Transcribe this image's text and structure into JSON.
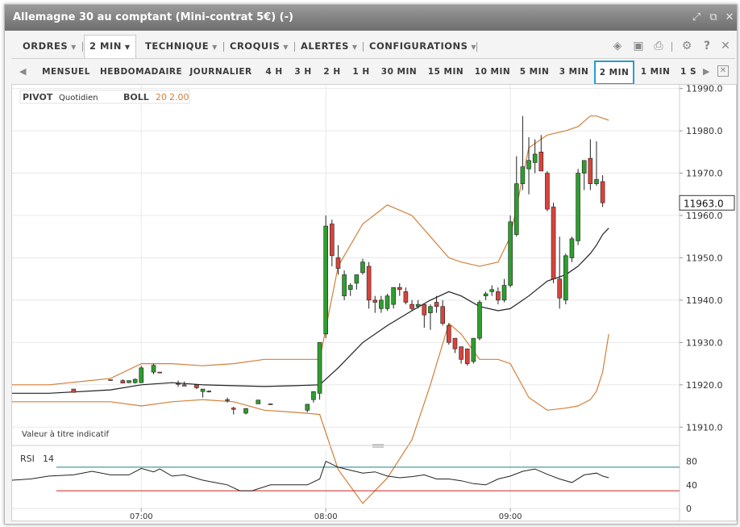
{
  "window": {
    "title": "Allemagne 30 au comptant (Mini-contrat 5€) (-)"
  },
  "menu": {
    "items": [
      "ORDRES",
      "2 MIN",
      "TECHNIQUE",
      "CROQUIS",
      "ALERTES",
      "CONFIGURATIONS"
    ],
    "selected": "2 MIN"
  },
  "toolbar_icons": [
    "layers-icon",
    "image-icon",
    "print-icon",
    "gear-icon",
    "help-icon",
    "close-icon"
  ],
  "timeframes": {
    "items": [
      "MENSUEL",
      "HEBDOMADAIRE",
      "JOURNALIER",
      "4 H",
      "3 H",
      "2 H",
      "1 H",
      "30 MIN",
      "15 MIN",
      "10 MIN",
      "5 MIN",
      "3 MIN",
      "2 MIN",
      "1 MIN",
      "1 S"
    ],
    "selected": "2 MIN"
  },
  "indicators": {
    "pivot_label": "PIVOT",
    "pivot_value": "Quotidien",
    "boll_label": "BOLL",
    "boll_period": "20",
    "boll_dev": "2.00",
    "disclaimer": "Valeur à titre indicatif",
    "rsi_label": "RSI",
    "rsi_period": "14"
  },
  "colors": {
    "up": "#2e9e2e",
    "down": "#d9433b",
    "band": "#d2803a",
    "sma": "#222222",
    "rsi_line": "#222222",
    "rsi_upper": "#1f7f8f",
    "rsi_lower": "#cc2222",
    "selection": "#2a9bd0"
  },
  "chart_data": [
    {
      "type": "candlestick",
      "price_axis": {
        "ticks": [
          11910,
          11920,
          11930,
          11940,
          11950,
          11960,
          11970,
          11980,
          11990
        ],
        "range": [
          11907,
          11990.5
        ]
      },
      "time_axis": {
        "ticks": [
          "07:00",
          "08:00",
          "09:00"
        ],
        "range": [
          "06:18",
          "09:55"
        ]
      },
      "last_price": "11963.0",
      "candles": [
        {
          "t": "06:38",
          "o": 11919,
          "h": 11919,
          "l": 11918.2,
          "c": 11918.2
        },
        {
          "t": "06:50",
          "o": 11921.2,
          "h": 11921.2,
          "l": 11921.1,
          "c": 11921.1
        },
        {
          "t": "06:54",
          "o": 11921,
          "h": 11921.3,
          "l": 11920.4,
          "c": 11920.4
        },
        {
          "t": "06:56",
          "o": 11920.5,
          "h": 11921,
          "l": 11920.4,
          "c": 11921
        },
        {
          "t": "06:58",
          "o": 11920.5,
          "h": 11921.5,
          "l": 11920.3,
          "c": 11921.3
        },
        {
          "t": "07:00",
          "o": 11920.5,
          "h": 11924.5,
          "l": 11920.5,
          "c": 11924
        },
        {
          "t": "07:04",
          "o": 11923,
          "h": 11925,
          "l": 11922.5,
          "c": 11924.6
        },
        {
          "t": "07:06",
          "o": 11923,
          "h": 11923,
          "l": 11922.8,
          "c": 11922.8
        },
        {
          "t": "07:12",
          "o": 11920.3,
          "h": 11921,
          "l": 11919.5,
          "c": 11920.2
        },
        {
          "t": "07:14",
          "o": 11920,
          "h": 11920.8,
          "l": 11919.7,
          "c": 11919.7
        },
        {
          "t": "07:18",
          "o": 11920,
          "h": 11920.2,
          "l": 11919,
          "c": 11919.3
        },
        {
          "t": "07:20",
          "o": 11918.4,
          "h": 11919,
          "l": 11917,
          "c": 11919
        },
        {
          "t": "07:22",
          "o": 11918.5,
          "h": 11918.7,
          "l": 11918.2,
          "c": 11918.4
        },
        {
          "t": "07:28",
          "o": 11916.5,
          "h": 11917,
          "l": 11915.8,
          "c": 11916.4
        },
        {
          "t": "07:30",
          "o": 11914.5,
          "h": 11914.8,
          "l": 11913,
          "c": 11914.2
        },
        {
          "t": "07:34",
          "o": 11913.3,
          "h": 11914.5,
          "l": 11913,
          "c": 11914.4
        },
        {
          "t": "07:38",
          "o": 11915.5,
          "h": 11916.4,
          "l": 11915.5,
          "c": 11916.4
        },
        {
          "t": "07:42",
          "o": 11915.5,
          "h": 11915.6,
          "l": 11915.4,
          "c": 11915.4
        },
        {
          "t": "07:54",
          "o": 11914,
          "h": 11915.5,
          "l": 11913.5,
          "c": 11915.4
        },
        {
          "t": "07:56",
          "o": 11916.5,
          "h": 11918.5,
          "l": 11915.8,
          "c": 11918.4
        },
        {
          "t": "07:58",
          "o": 11918,
          "h": 11930,
          "l": 11916.5,
          "c": 11930
        },
        {
          "t": "08:00",
          "o": 11932,
          "h": 11960,
          "l": 11931,
          "c": 11957.5
        },
        {
          "t": "08:02",
          "o": 11958,
          "h": 11959,
          "l": 11948,
          "c": 11950.5
        },
        {
          "t": "08:04",
          "o": 11950,
          "h": 11953,
          "l": 11946,
          "c": 11947.5
        },
        {
          "t": "08:06",
          "o": 11941,
          "h": 11947,
          "l": 11940,
          "c": 11946
        },
        {
          "t": "08:08",
          "o": 11942.5,
          "h": 11944,
          "l": 11941,
          "c": 11943.5
        },
        {
          "t": "08:10",
          "o": 11944,
          "h": 11946,
          "l": 11942.5,
          "c": 11946
        },
        {
          "t": "08:12",
          "o": 11946.5,
          "h": 11949.8,
          "l": 11946,
          "c": 11949
        },
        {
          "t": "08:14",
          "o": 11948,
          "h": 11949,
          "l": 11938,
          "c": 11940
        },
        {
          "t": "08:16",
          "o": 11940,
          "h": 11941,
          "l": 11937,
          "c": 11939.5
        },
        {
          "t": "08:18",
          "o": 11938,
          "h": 11941,
          "l": 11937,
          "c": 11940
        },
        {
          "t": "08:20",
          "o": 11938,
          "h": 11941.5,
          "l": 11937.5,
          "c": 11941
        },
        {
          "t": "08:22",
          "o": 11939,
          "h": 11943,
          "l": 11938,
          "c": 11943
        },
        {
          "t": "08:24",
          "o": 11943,
          "h": 11944,
          "l": 11941,
          "c": 11942.5
        },
        {
          "t": "08:26",
          "o": 11942,
          "h": 11943,
          "l": 11939,
          "c": 11939.5
        },
        {
          "t": "08:28",
          "o": 11939,
          "h": 11940,
          "l": 11937.5,
          "c": 11938
        },
        {
          "t": "08:30",
          "o": 11938.5,
          "h": 11940,
          "l": 11938,
          "c": 11939
        },
        {
          "t": "08:32",
          "o": 11939,
          "h": 11939,
          "l": 11933.5,
          "c": 11936.5
        },
        {
          "t": "08:34",
          "o": 11937,
          "h": 11939,
          "l": 11933,
          "c": 11938.5
        },
        {
          "t": "08:36",
          "o": 11939.5,
          "h": 11941,
          "l": 11937,
          "c": 11938.5
        },
        {
          "t": "08:38",
          "o": 11938.5,
          "h": 11940,
          "l": 11934,
          "c": 11934.5
        },
        {
          "t": "08:40",
          "o": 11934,
          "h": 11934.5,
          "l": 11929.5,
          "c": 11930
        },
        {
          "t": "08:42",
          "o": 11931,
          "h": 11931,
          "l": 11927.5,
          "c": 11928.5
        },
        {
          "t": "08:44",
          "o": 11929,
          "h": 11929,
          "l": 11925,
          "c": 11926
        },
        {
          "t": "08:46",
          "o": 11928.5,
          "h": 11928.5,
          "l": 11924.5,
          "c": 11925
        },
        {
          "t": "08:48",
          "o": 11925.5,
          "h": 11931,
          "l": 11925,
          "c": 11931
        },
        {
          "t": "08:50",
          "o": 11931,
          "h": 11940,
          "l": 11930.5,
          "c": 11939.5
        },
        {
          "t": "08:52",
          "o": 11941,
          "h": 11942,
          "l": 11940,
          "c": 11941.5
        },
        {
          "t": "08:54",
          "o": 11942,
          "h": 11943.5,
          "l": 11941,
          "c": 11942.5
        },
        {
          "t": "08:56",
          "o": 11942,
          "h": 11943,
          "l": 11939,
          "c": 11940
        },
        {
          "t": "08:58",
          "o": 11940,
          "h": 11945,
          "l": 11939.5,
          "c": 11943.5
        },
        {
          "t": "09:00",
          "o": 11943.5,
          "h": 11960,
          "l": 11943,
          "c": 11958.5
        },
        {
          "t": "09:02",
          "o": 11955.5,
          "h": 11974,
          "l": 11955,
          "c": 11967.5
        },
        {
          "t": "09:04",
          "o": 11967.5,
          "h": 11983.5,
          "l": 11966,
          "c": 11971.5
        },
        {
          "t": "09:06",
          "o": 11971,
          "h": 11978.5,
          "l": 11965,
          "c": 11973
        },
        {
          "t": "09:08",
          "o": 11972.5,
          "h": 11978,
          "l": 11970,
          "c": 11974.5
        },
        {
          "t": "09:10",
          "o": 11975,
          "h": 11979,
          "l": 11970.5,
          "c": 11970.5
        },
        {
          "t": "09:12",
          "o": 11970,
          "h": 11970.5,
          "l": 11961,
          "c": 11961.5
        },
        {
          "t": "09:14",
          "o": 11962,
          "h": 11963,
          "l": 11944,
          "c": 11945
        },
        {
          "t": "09:16",
          "o": 11945,
          "h": 11955,
          "l": 11938,
          "c": 11940.5
        },
        {
          "t": "09:18",
          "o": 11940,
          "h": 11951,
          "l": 11939,
          "c": 11950.5
        },
        {
          "t": "09:20",
          "o": 11950,
          "h": 11955,
          "l": 11949,
          "c": 11954.5
        },
        {
          "t": "09:22",
          "o": 11954,
          "h": 11971,
          "l": 11953,
          "c": 11970
        },
        {
          "t": "09:24",
          "o": 11970,
          "h": 11973,
          "l": 11966,
          "c": 11973
        },
        {
          "t": "09:26",
          "o": 11973.5,
          "h": 11978,
          "l": 11966,
          "c": 11967.5
        },
        {
          "t": "09:28",
          "o": 11967.5,
          "h": 11977.5,
          "l": 11967,
          "c": 11968.5
        },
        {
          "t": "09:30",
          "o": 11968,
          "h": 11969.5,
          "l": 11962,
          "c": 11963
        }
      ],
      "bollinger": {
        "times": [
          "06:18",
          "06:30",
          "06:50",
          "07:00",
          "07:10",
          "07:20",
          "07:30",
          "07:40",
          "07:50",
          "07:58",
          "08:04",
          "08:12",
          "08:20",
          "08:28",
          "08:34",
          "08:40",
          "08:44",
          "08:50",
          "08:56",
          "09:00",
          "09:06",
          "09:12",
          "09:18",
          "09:22",
          "09:26",
          "09:28",
          "09:30",
          "09:32"
        ],
        "upper": [
          11920,
          11920,
          11921.5,
          11925,
          11925,
          11924.5,
          11925,
          11926,
          11926,
          11926,
          11948,
          11958,
          11962.5,
          11960,
          11955,
          11950,
          11949,
          11948,
          11949,
          11955,
          11976,
          11979,
          11980,
          11981,
          11983.5,
          11983.5,
          11983,
          11982.5
        ],
        "middle": [
          11918,
          11918,
          11918.8,
          11920,
          11920.5,
          11920,
          11919.8,
          11919.6,
          11919.8,
          11920,
          11924,
          11930,
          11934,
          11937.5,
          11940,
          11942,
          11941,
          11938.5,
          11937.5,
          11938,
          11941,
          11944.5,
          11946,
          11948,
          11951,
          11953,
          11955.5,
          11957
        ],
        "lower": [
          11916,
          11916,
          11916,
          11915,
          11916,
          11916.5,
          11916,
          11914,
          11913.5,
          11913,
          11900,
          11892,
          11898,
          11907,
          11920,
          11934.5,
          11932,
          11926,
          11926,
          11925,
          11917,
          11914,
          11914.5,
          11915,
          11916.5,
          11918.5,
          11923,
          11932
        ]
      }
    },
    {
      "type": "line",
      "name": "RSI 14",
      "y_axis": {
        "ticks": [
          0,
          40,
          80
        ],
        "range": [
          0,
          100
        ]
      },
      "levels": [
        70,
        30
      ],
      "x": [
        "06:18",
        "06:24",
        "06:30",
        "06:38",
        "06:44",
        "06:50",
        "06:56",
        "07:00",
        "07:04",
        "07:06",
        "07:10",
        "07:14",
        "07:20",
        "07:24",
        "07:28",
        "07:32",
        "07:36",
        "07:42",
        "07:48",
        "07:54",
        "07:58",
        "08:00",
        "08:04",
        "08:08",
        "08:12",
        "08:16",
        "08:20",
        "08:24",
        "08:28",
        "08:32",
        "08:36",
        "08:40",
        "08:44",
        "08:48",
        "08:52",
        "08:56",
        "09:00",
        "09:04",
        "09:08",
        "09:12",
        "09:16",
        "09:20",
        "09:24",
        "09:28",
        "09:30",
        "09:32"
      ],
      "y": [
        48,
        50,
        55,
        57,
        63,
        57,
        57,
        68,
        62,
        67,
        55,
        57,
        48,
        44,
        40,
        30,
        30,
        40,
        40,
        40,
        50,
        80,
        70,
        65,
        60,
        62,
        55,
        52,
        54,
        57,
        50,
        50,
        47,
        42,
        40,
        50,
        55,
        63,
        67,
        58,
        50,
        44,
        57,
        60,
        55,
        52
      ]
    }
  ]
}
